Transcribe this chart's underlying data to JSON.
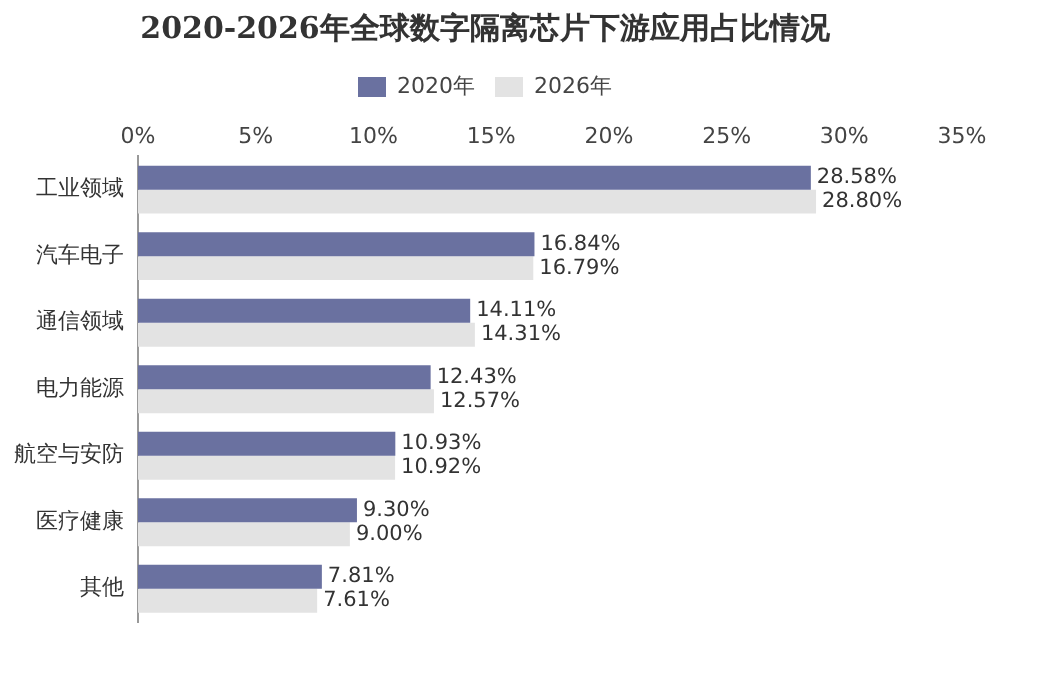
{
  "chart_data": {
    "type": "bar",
    "orientation": "horizontal",
    "title": "2020-2026年全球数字隔离芯片下游应用占比情况",
    "categories": [
      "工业领域",
      "汽车电子",
      "通信领域",
      "电力能源",
      "航空与安防",
      "医疗健康",
      "其他"
    ],
    "series": [
      {
        "name": "2020年",
        "color": "#6a71a0",
        "values": [
          28.58,
          16.84,
          14.11,
          12.43,
          10.93,
          9.3,
          7.81
        ],
        "value_labels": [
          "28.58%",
          "16.84%",
          "14.11%",
          "12.43%",
          "10.93%",
          "9.30%",
          "7.81%"
        ]
      },
      {
        "name": "2026年",
        "color": "#e3e3e3",
        "values": [
          28.8,
          16.79,
          14.31,
          12.57,
          10.92,
          9.0,
          7.61
        ],
        "value_labels": [
          "28.80%",
          "16.79%",
          "14.31%",
          "12.57%",
          "10.92%",
          "9.00%",
          "7.61%"
        ]
      }
    ],
    "xlim": [
      0,
      35
    ],
    "xticks": [
      {
        "value": 0,
        "label": "0%"
      },
      {
        "value": 5,
        "label": "5%"
      },
      {
        "value": 10,
        "label": "10%"
      },
      {
        "value": 15,
        "label": "15%"
      },
      {
        "value": 20,
        "label": "20%"
      },
      {
        "value": 25,
        "label": "25%"
      },
      {
        "value": 30,
        "label": "30%"
      },
      {
        "value": 35,
        "label": "35%"
      }
    ],
    "grid": false,
    "legend": "top"
  }
}
